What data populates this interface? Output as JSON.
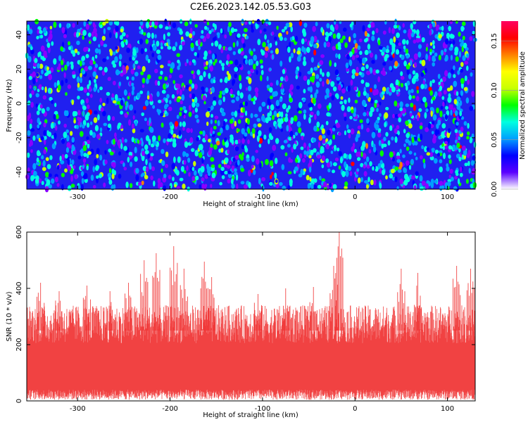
{
  "title": "C2E6.2023.142.05.53.G03",
  "chart_data": [
    {
      "type": "heatmap",
      "xlabel": "Height of straight line (km)",
      "ylabel": "Frequency (Hz)",
      "xlim": [
        -355,
        130
      ],
      "ylim": [
        -50,
        48
      ],
      "xticks": [
        -300,
        -200,
        -100,
        0,
        100
      ],
      "yticks": [
        -40,
        -20,
        0,
        20,
        40
      ],
      "colorbar": {
        "label": "Normalized spectral amplitude",
        "range": [
          0,
          0.17
        ],
        "ticks": [
          "0.00",
          "0.05",
          "0.10",
          "0.15"
        ],
        "colors": [
          "#ffffff",
          "#5a00ff",
          "#0000ff",
          "#00a0ff",
          "#00ffe0",
          "#00ff00",
          "#c8ff00",
          "#ffff00",
          "#ff8000",
          "#ff0000",
          "#ff0060"
        ]
      },
      "background_level": 0.02,
      "scattered_level_range": [
        0.04,
        0.15
      ],
      "peak_value": 0.13
    },
    {
      "type": "line",
      "xlabel": "Height of straight line (km)",
      "ylabel": "SNR (10 * v/v)",
      "xlim": [
        -355,
        130
      ],
      "ylim": [
        0,
        600
      ],
      "xticks": [
        -300,
        -200,
        -100,
        0,
        100
      ],
      "yticks": [
        0,
        200,
        400,
        600
      ],
      "color": "#f03030",
      "typical_lower": 40,
      "typical_upper": 340,
      "peak": {
        "x": -17,
        "y": 600
      },
      "spikes": [
        {
          "x": -340,
          "y": 420
        },
        {
          "x": -320,
          "y": 390
        },
        {
          "x": -290,
          "y": 410
        },
        {
          "x": -265,
          "y": 390
        },
        {
          "x": -245,
          "y": 420
        },
        {
          "x": -228,
          "y": 500
        },
        {
          "x": -215,
          "y": 525
        },
        {
          "x": -196,
          "y": 550
        },
        {
          "x": -185,
          "y": 470
        },
        {
          "x": -163,
          "y": 495
        },
        {
          "x": -155,
          "y": 440
        },
        {
          "x": -105,
          "y": 380
        },
        {
          "x": -75,
          "y": 400
        },
        {
          "x": -45,
          "y": 405
        },
        {
          "x": -23,
          "y": 480
        },
        {
          "x": -17,
          "y": 600
        },
        {
          "x": 50,
          "y": 470
        },
        {
          "x": 68,
          "y": 455
        },
        {
          "x": 110,
          "y": 480
        },
        {
          "x": 125,
          "y": 470
        }
      ]
    }
  ]
}
